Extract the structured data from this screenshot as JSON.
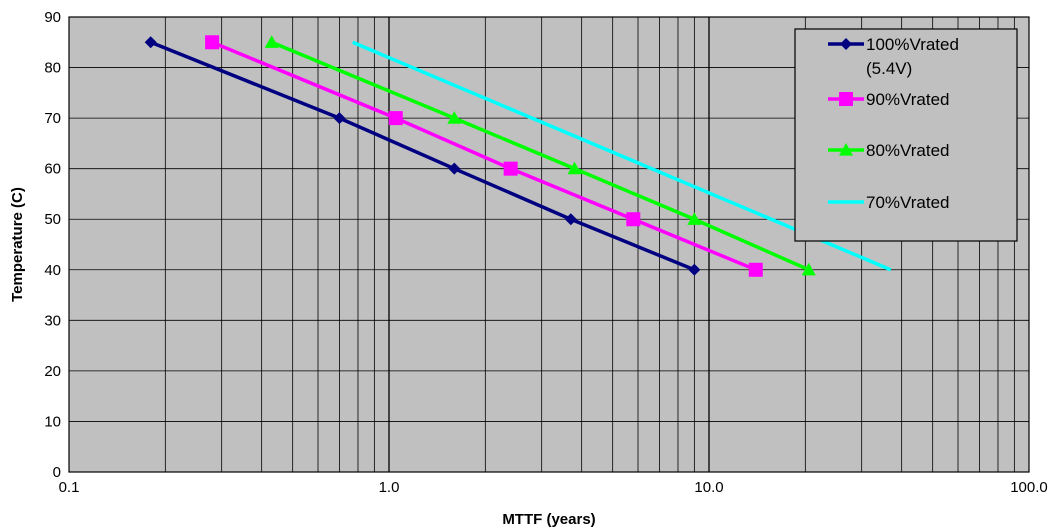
{
  "chart_data": {
    "type": "line",
    "title": "",
    "xlabel": "MTTF (years)",
    "ylabel": "Temperature (C)",
    "x_scale": "log",
    "xlim": [
      0.1,
      100.0
    ],
    "ylim": [
      0,
      90
    ],
    "x_ticks": [
      {
        "value": 0.1,
        "label": "0.1"
      },
      {
        "value": 1.0,
        "label": "1.0"
      },
      {
        "value": 10.0,
        "label": "10.0"
      },
      {
        "value": 100.0,
        "label": "100.0"
      }
    ],
    "y_ticks": [
      {
        "value": 0,
        "label": "0"
      },
      {
        "value": 10,
        "label": "10"
      },
      {
        "value": 20,
        "label": "20"
      },
      {
        "value": 30,
        "label": "30"
      },
      {
        "value": 40,
        "label": "40"
      },
      {
        "value": 50,
        "label": "50"
      },
      {
        "value": 60,
        "label": "60"
      },
      {
        "value": 70,
        "label": "70"
      },
      {
        "value": 80,
        "label": "80"
      },
      {
        "value": 90,
        "label": "90"
      }
    ],
    "grid": "log-major-minor",
    "background_color": "#c0c0c0",
    "grid_color": "#000000",
    "legend_position": "top-right",
    "series": [
      {
        "name": "100%Vrated (5.4V)",
        "legend_lines": [
          "100%Vrated",
          "(5.4V)"
        ],
        "color": "#000080",
        "marker": "diamond",
        "x": [
          0.18,
          0.7,
          1.6,
          3.7,
          9.0
        ],
        "y": [
          85,
          70,
          60,
          50,
          40
        ]
      },
      {
        "name": "90%Vrated",
        "legend_lines": [
          "90%Vrated"
        ],
        "color": "#ff00ff",
        "marker": "square",
        "x": [
          0.28,
          1.05,
          2.4,
          5.8,
          14.0
        ],
        "y": [
          85,
          70,
          60,
          50,
          40
        ]
      },
      {
        "name": "80%Vrated",
        "legend_lines": [
          "80%Vrated"
        ],
        "color": "#00ff00",
        "marker": "triangle",
        "x": [
          0.43,
          1.6,
          3.8,
          9.0,
          20.5
        ],
        "y": [
          85,
          70,
          60,
          50,
          40
        ]
      },
      {
        "name": "70%Vrated",
        "legend_lines": [
          "70%Vrated"
        ],
        "color": "#00ffff",
        "marker": "none",
        "x": [
          0.77,
          37.0
        ],
        "y": [
          85,
          40
        ]
      }
    ]
  }
}
